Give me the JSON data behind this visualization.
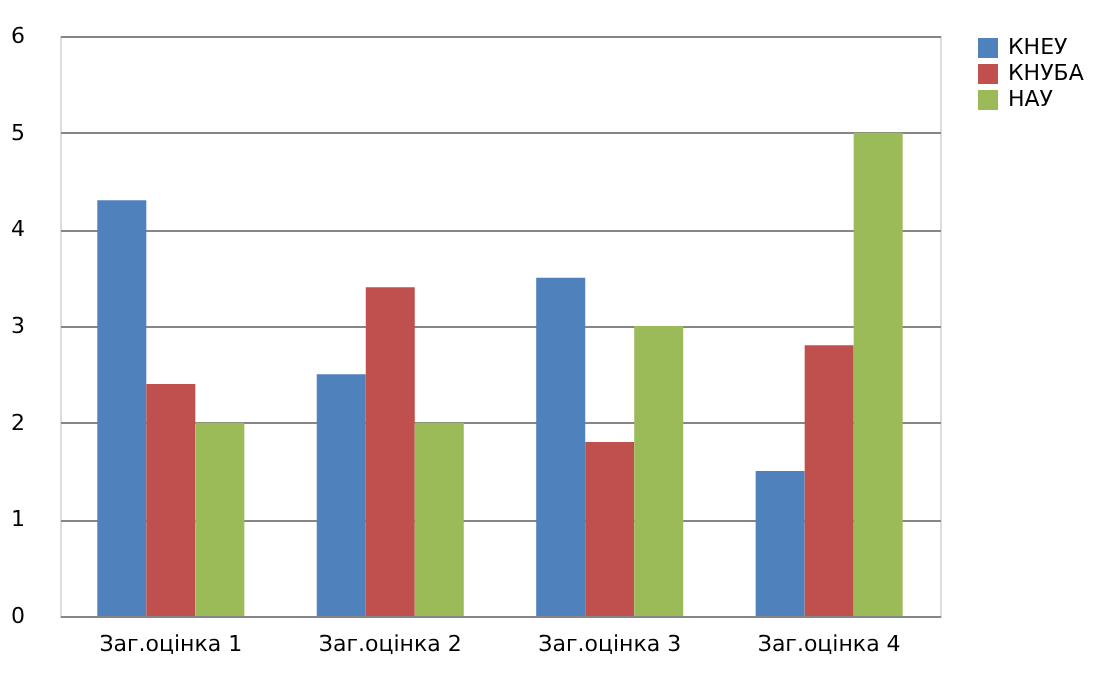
{
  "chart_data": {
    "type": "bar",
    "categories": [
      "Заг.оцінка 1",
      "Заг.оцінка 2",
      "Заг.оцінка 3",
      "Заг.оцінка 4"
    ],
    "series": [
      {
        "name": "КНЕУ",
        "color": "#4f81bd",
        "values": [
          4.3,
          2.5,
          3.5,
          1.5
        ]
      },
      {
        "name": "КНУБА",
        "color": "#c0504d",
        "values": [
          2.4,
          3.4,
          1.8,
          2.8
        ]
      },
      {
        "name": "НАУ",
        "color": "#9bbb59",
        "values": [
          2.0,
          2.0,
          3.0,
          5.0
        ]
      }
    ],
    "ylim": [
      0,
      6
    ],
    "yticks": [
      0,
      1,
      2,
      3,
      4,
      5,
      6
    ],
    "grid": "y",
    "legend": "right"
  }
}
